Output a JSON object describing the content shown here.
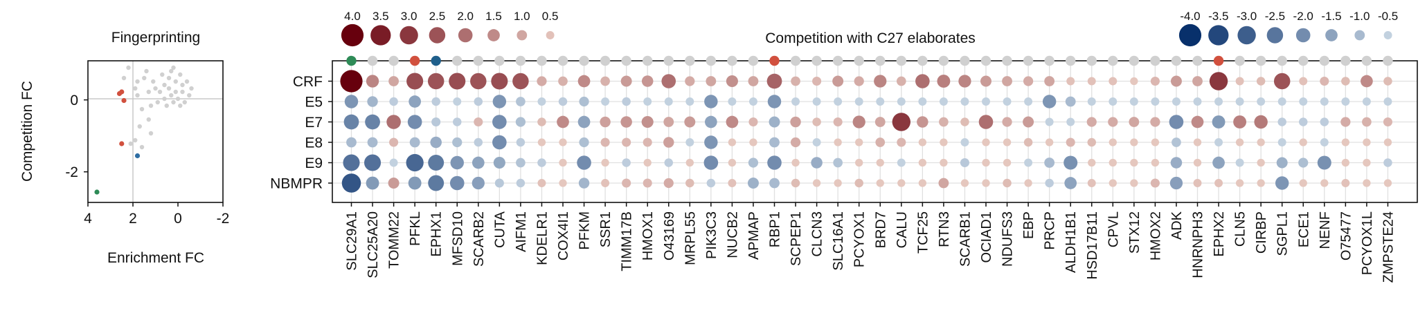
{
  "chart_data": [
    {
      "type": "scatter",
      "title": "Fingerprinting",
      "xlabel": "Enrichment FC",
      "ylabel": "Competition FC",
      "xlim": [
        4,
        -2
      ],
      "ylim": [
        -3,
        1.1
      ],
      "x_ticks": [
        "4",
        "2",
        "0",
        "-2"
      ],
      "y_ticks": [
        "0",
        "-2"
      ],
      "grid": "x=2 and y=0 lines",
      "background_points": [
        [
          -0.2,
          0.2
        ],
        [
          0.1,
          0.5
        ],
        [
          0.4,
          0.3
        ],
        [
          -0.5,
          0.1
        ],
        [
          0.2,
          -0.1
        ],
        [
          0.6,
          0.4
        ],
        [
          -0.1,
          0.7
        ],
        [
          0.3,
          0.8
        ],
        [
          0.8,
          0.2
        ],
        [
          -0.4,
          0.5
        ],
        [
          0.0,
          0.0
        ],
        [
          0.5,
          -0.2
        ],
        [
          1.0,
          0.3
        ],
        [
          -0.6,
          0.3
        ],
        [
          0.2,
          0.9
        ],
        [
          0.7,
          0.7
        ],
        [
          -0.3,
          -0.1
        ],
        [
          1.1,
          0.5
        ],
        [
          0.4,
          0.6
        ],
        [
          -0.2,
          0.4
        ],
        [
          0.9,
          -0.1
        ],
        [
          0.1,
          0.2
        ],
        [
          1.3,
          0.2
        ],
        [
          0.6,
          0.0
        ],
        [
          -0.1,
          -0.2
        ],
        [
          1.5,
          0.6
        ],
        [
          0.3,
          0.1
        ],
        [
          1.2,
          -0.2
        ],
        [
          1.8,
          0.5
        ],
        [
          2.2,
          0.9
        ],
        [
          1.6,
          -0.3
        ],
        [
          1.3,
          -0.6
        ],
        [
          1.7,
          -0.8
        ],
        [
          1.2,
          -1.0
        ],
        [
          1.9,
          -1.2
        ],
        [
          1.6,
          -1.4
        ],
        [
          2.1,
          -1.3
        ],
        [
          1.8,
          0.1
        ],
        [
          1.4,
          0.8
        ],
        [
          1.9,
          0.3
        ],
        [
          2.4,
          0.6
        ]
      ],
      "highlighted_points": [
        {
          "x": 3.6,
          "y": -2.7,
          "color": "#2e8b57"
        },
        {
          "x": 1.8,
          "y": -1.65,
          "color": "#2f6ea3"
        },
        {
          "x": 2.5,
          "y": -1.3,
          "color": "#d1503e"
        },
        {
          "x": 2.6,
          "y": 0.15,
          "color": "#d1503e"
        },
        {
          "x": 2.5,
          "y": 0.2,
          "color": "#d1503e"
        },
        {
          "x": 2.4,
          "y": -0.05,
          "color": "#d1503e"
        }
      ]
    },
    {
      "type": "dot-matrix",
      "title": "Competition with C27 elaborates",
      "categories": [
        "SLC29A1",
        "SLC25A20",
        "TOMM22",
        "PFKL",
        "EPHX1",
        "MFSD10",
        "SCARB2",
        "CUTA",
        "AIFM1",
        "KDELR1",
        "COX4I1",
        "PFKM",
        "SSR1",
        "TIMM17B",
        "HMOX1",
        "O43169",
        "MRPL55",
        "PIK3C3",
        "NUCB2",
        "APMAP",
        "RBP1",
        "SCPEP1",
        "CLCN3",
        "SLC16A1",
        "PCYOX1",
        "BRD7",
        "CALU",
        "TCF25",
        "RTN3",
        "SCARB1",
        "OCIAD1",
        "NDUFS3",
        "EBP",
        "PRCP",
        "ALDH1B1",
        "HSD17B11",
        "CPVL",
        "STX12",
        "HMOX2",
        "ADK",
        "HNRNPH3",
        "EPHX2",
        "CLN5",
        "CIRBP",
        "SGPL1",
        "ECE1",
        "NENF",
        "O75477",
        "PCYOX1L",
        "ZMPSTE24"
      ],
      "top_row_highlight_colors": {
        "SLC29A1": "#2e8b57",
        "PFKL": "#d1503e",
        "EPHX1": "#1f5f8b",
        "RBP1": "#d1503e",
        "EPHX2": "#d1503e"
      },
      "series": [
        {
          "name": "CRF",
          "values": [
            4.0,
            1.6,
            1.0,
            2.6,
            2.5,
            2.6,
            2.5,
            2.6,
            2.5,
            0.9,
            0.8,
            1.5,
            0.8,
            1.2,
            1.3,
            2.0,
            0.9,
            1.0,
            1.4,
            1.0,
            2.2,
            0.8,
            0.7,
            1.2,
            0.9,
            1.6,
            0.8,
            2.0,
            1.7,
            1.6,
            1.2,
            1.0,
            0.9,
            1.0,
            0.5,
            0.5,
            0.5,
            0.4,
            0.7,
            1.2,
            1.0,
            3.0,
            0.5,
            0.6,
            2.5,
            0.5,
            0.7,
            0.6,
            1.5,
            0.6
          ]
        },
        {
          "name": "E5",
          "values": [
            -1.8,
            -1.1,
            -0.6,
            -1.5,
            -0.6,
            -0.5,
            -0.6,
            -1.8,
            -0.8,
            -0.5,
            -0.6,
            -0.9,
            -0.5,
            -0.6,
            -0.5,
            -0.5,
            -0.5,
            -1.8,
            -0.5,
            -0.5,
            -1.8,
            -0.5,
            -0.5,
            -0.5,
            -0.5,
            -0.5,
            -0.5,
            -0.5,
            -0.5,
            -0.5,
            -0.5,
            -0.5,
            -0.5,
            -1.8,
            -1.0,
            -0.5,
            -0.5,
            -0.5,
            -0.5,
            -0.5,
            -0.5,
            -0.5,
            -0.5,
            -0.5,
            -0.5,
            -0.5,
            -0.5,
            -0.5,
            -0.5,
            -0.5
          ]
        },
        {
          "name": "E7",
          "values": [
            -2.2,
            -2.2,
            2.0,
            -2.0,
            -0.7,
            -0.6,
            0.7,
            -2.0,
            -0.9,
            0.6,
            1.5,
            -1.5,
            1.1,
            1.3,
            1.4,
            1.0,
            1.2,
            -1.5,
            1.5,
            0.7,
            -1.2,
            1.1,
            0.6,
            0.7,
            1.6,
            1.0,
            3.0,
            1.3,
            0.8,
            0.6,
            2.0,
            0.9,
            1.2,
            -0.5,
            -0.5,
            0.9,
            0.9,
            1.0,
            0.9,
            -2.0,
            1.5,
            -1.7,
            1.7,
            1.8,
            -0.6,
            -0.6,
            -0.6,
            0.9,
            0.8,
            0.7
          ]
        },
        {
          "name": "E8",
          "values": [
            -1.0,
            -1.0,
            0.7,
            -1.0,
            -1.3,
            -0.9,
            -0.6,
            -2.0,
            -0.6,
            0.4,
            0.4,
            -0.9,
            0.7,
            0.7,
            0.7,
            1.1,
            -0.5,
            -1.8,
            0.4,
            0.4,
            -1.0,
            0.9,
            -0.5,
            0.4,
            0.4,
            0.8,
            0.7,
            0.4,
            0.4,
            -0.5,
            0.4,
            0.4,
            0.6,
            0.4,
            0.7,
            0.6,
            0.4,
            0.4,
            0.4,
            -0.8,
            0.4,
            -0.5,
            0.4,
            0.4,
            -0.5,
            0.4,
            -0.5,
            0.4,
            0.4,
            0.4
          ]
        },
        {
          "name": "E9",
          "values": [
            -2.6,
            -2.6,
            -0.5,
            -2.8,
            -2.4,
            -1.8,
            -1.5,
            -1.4,
            -0.8,
            -0.6,
            0.4,
            -2.0,
            0.4,
            -0.6,
            0.4,
            -0.6,
            0.4,
            -2.0,
            0.4,
            -0.9,
            -2.0,
            0.4,
            -1.3,
            -0.8,
            0.4,
            0.4,
            -0.5,
            0.4,
            0.4,
            -0.7,
            0.4,
            0.4,
            -0.5,
            -1.0,
            -1.9,
            0.4,
            0.4,
            0.4,
            0.4,
            -1.3,
            0.4,
            -1.5,
            -0.5,
            0.4,
            -1.2,
            -0.9,
            -1.9,
            0.4,
            0.4,
            -0.6
          ]
        },
        {
          "name": "NBMPR",
          "values": [
            -3.2,
            -1.7,
            1.2,
            -1.7,
            -2.4,
            -2.0,
            -1.6,
            -0.7,
            -0.6,
            0.5,
            0.4,
            -1.1,
            0.5,
            0.7,
            0.7,
            0.9,
            0.6,
            -0.6,
            0.5,
            -1.2,
            -1.0,
            0.6,
            0.4,
            0.4,
            0.6,
            0.4,
            0.4,
            0.4,
            1.0,
            0.4,
            0.4,
            0.6,
            0.4,
            -0.6,
            -1.5,
            0.5,
            0.4,
            0.4,
            0.7,
            -1.6,
            0.5,
            0.5,
            0.4,
            0.4,
            -1.8,
            0.4,
            0.4,
            0.5,
            0.4,
            0.4
          ]
        }
      ],
      "size_legend_positive": {
        "labels": [
          "4.0",
          "3.5",
          "3.0",
          "2.5",
          "2.0",
          "1.5",
          "1.0",
          "0.5"
        ],
        "values": [
          4.0,
          3.5,
          3.0,
          2.5,
          2.0,
          1.5,
          1.0,
          0.5
        ]
      },
      "size_legend_negative": {
        "labels": [
          "-4.0",
          "-3.5",
          "-3.0",
          "-2.5",
          "-2.0",
          "-1.5",
          "-1.0",
          "-0.5"
        ],
        "values": [
          -4.0,
          -3.5,
          -3.0,
          -2.5,
          -2.0,
          -1.5,
          -1.0,
          -0.5
        ]
      },
      "colors": {
        "positive_max": "#67000d",
        "positive_min": "#f3ddd2",
        "negative_max": "#08306b",
        "negative_min": "#dde8f0",
        "neutral": "#d0d0d0"
      }
    }
  ]
}
